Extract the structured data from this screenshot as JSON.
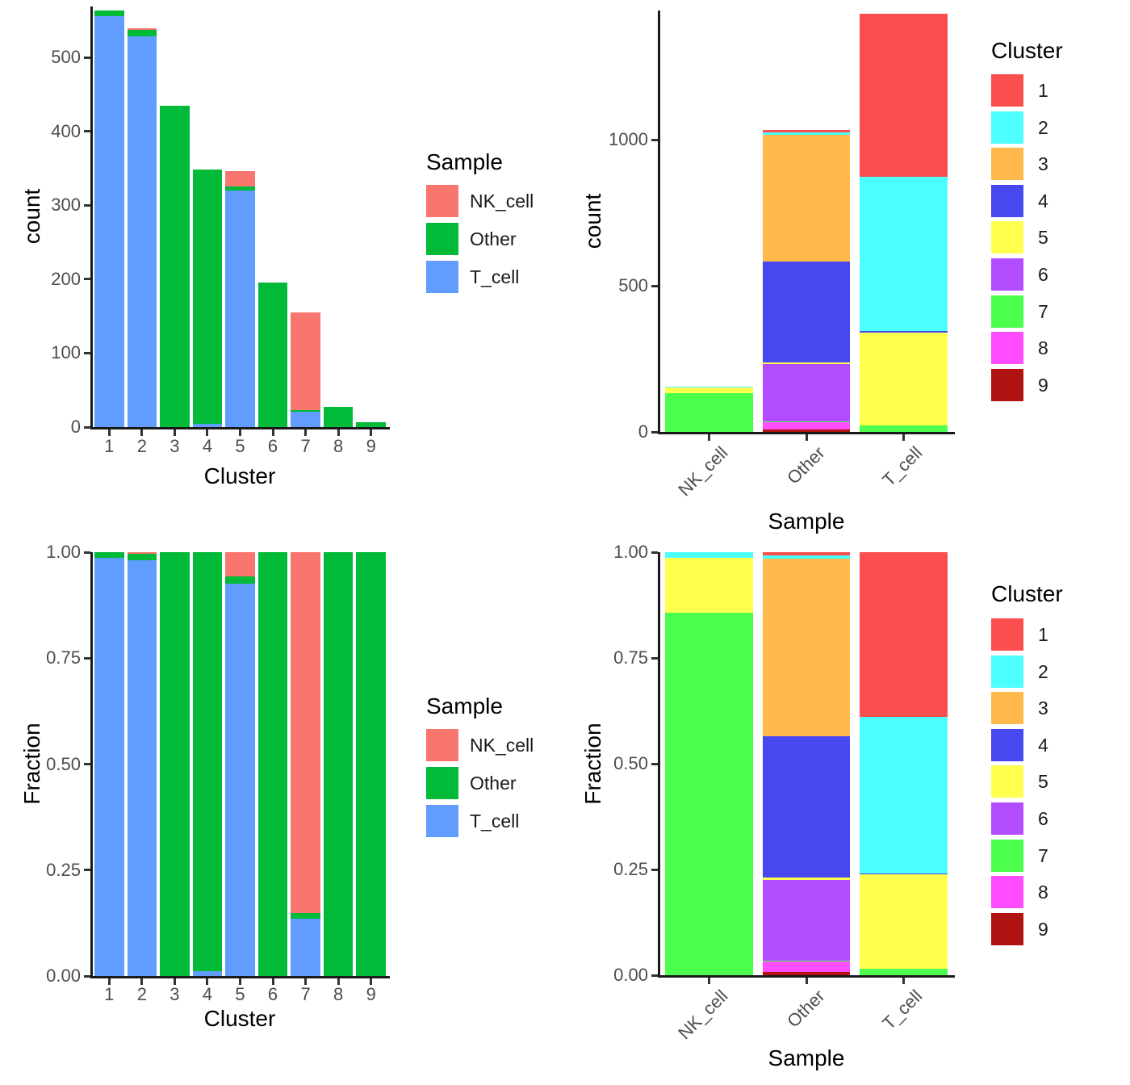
{
  "figure": {
    "background": "#ffffff",
    "description_colors": {
      "sample_NK_cell": "#F8766D",
      "sample_Other": "#00BA38",
      "sample_T_cell": "#619CFF",
      "cluster_1": "#FB4E4E",
      "cluster_2": "#4DFFFF",
      "cluster_3": "#FFB94D",
      "cluster_4": "#4848F0",
      "cluster_5": "#FFFF4D",
      "cluster_6": "#B24DFF",
      "cluster_7": "#4DFF4D",
      "cluster_8": "#FF4DFF",
      "cluster_9": "#B01212"
    }
  },
  "chart_data": [
    {
      "id": "count-by-cluster",
      "type": "bar",
      "stacked": true,
      "normalized": false,
      "xlabel": "Cluster",
      "ylabel": "count",
      "categories": [
        "1",
        "2",
        "3",
        "4",
        "5",
        "6",
        "7",
        "8",
        "9"
      ],
      "series": [
        {
          "name": "T_cell",
          "color": "#619CFF",
          "values": [
            556,
            529,
            0,
            4,
            320,
            0,
            21,
            0,
            0
          ]
        },
        {
          "name": "Other",
          "color": "#00BA38",
          "values": [
            7,
            8,
            435,
            344,
            6,
            196,
            2,
            27,
            7
          ]
        },
        {
          "name": "NK_cell",
          "color": "#F8766D",
          "values": [
            0,
            2,
            0,
            0,
            20,
            0,
            132,
            0,
            0
          ]
        }
      ],
      "yticks": [
        0,
        100,
        200,
        300,
        400,
        500
      ],
      "ytick_labels": [
        "0",
        "100",
        "200",
        "300",
        "400",
        "500"
      ],
      "ylim": [
        0,
        569
      ],
      "legend": {
        "title": "Sample",
        "entries": [
          {
            "label": "NK_cell",
            "color": "#F8766D"
          },
          {
            "label": "Other",
            "color": "#00BA38"
          },
          {
            "label": "T_cell",
            "color": "#619CFF"
          }
        ]
      }
    },
    {
      "id": "count-by-sample",
      "type": "bar",
      "stacked": true,
      "normalized": false,
      "xlabel": "Sample",
      "ylabel": "count",
      "categories": [
        "NK_cell",
        "Other",
        "T_cell"
      ],
      "series": [
        {
          "name": "9",
          "color": "#B01212",
          "values": [
            0,
            7,
            0
          ]
        },
        {
          "name": "8",
          "color": "#FF4DFF",
          "values": [
            0,
            27,
            0
          ]
        },
        {
          "name": "7",
          "color": "#4DFF4D",
          "values": [
            132,
            2,
            21
          ]
        },
        {
          "name": "6",
          "color": "#B24DFF",
          "values": [
            0,
            196,
            0
          ]
        },
        {
          "name": "5",
          "color": "#FFFF4D",
          "values": [
            20,
            6,
            320
          ]
        },
        {
          "name": "4",
          "color": "#4848F0",
          "values": [
            0,
            344,
            4
          ]
        },
        {
          "name": "3",
          "color": "#FFB94D",
          "values": [
            0,
            435,
            0
          ]
        },
        {
          "name": "2",
          "color": "#4DFFFF",
          "values": [
            2,
            8,
            529
          ]
        },
        {
          "name": "1",
          "color": "#FB4E4E",
          "values": [
            0,
            7,
            556
          ]
        }
      ],
      "yticks": [
        0,
        500,
        1000
      ],
      "ytick_labels": [
        "0",
        "500",
        "1000"
      ],
      "ylim": [
        0,
        1442
      ],
      "legend": {
        "title": "Cluster",
        "entries": [
          {
            "label": "1",
            "color": "#FB4E4E"
          },
          {
            "label": "2",
            "color": "#4DFFFF"
          },
          {
            "label": "3",
            "color": "#FFB94D"
          },
          {
            "label": "4",
            "color": "#4848F0"
          },
          {
            "label": "5",
            "color": "#FFFF4D"
          },
          {
            "label": "6",
            "color": "#B24DFF"
          },
          {
            "label": "7",
            "color": "#4DFF4D"
          },
          {
            "label": "8",
            "color": "#FF4DFF"
          },
          {
            "label": "9",
            "color": "#B01212"
          }
        ]
      }
    },
    {
      "id": "fraction-by-cluster",
      "type": "bar",
      "stacked": true,
      "normalized": true,
      "xlabel": "Cluster",
      "ylabel": "Fraction",
      "categories": [
        "1",
        "2",
        "3",
        "4",
        "5",
        "6",
        "7",
        "8",
        "9"
      ],
      "series": [
        {
          "name": "T_cell",
          "color": "#619CFF",
          "values": [
            556,
            529,
            0,
            4,
            320,
            0,
            21,
            0,
            0
          ]
        },
        {
          "name": "Other",
          "color": "#00BA38",
          "values": [
            7,
            8,
            435,
            344,
            6,
            196,
            2,
            27,
            7
          ]
        },
        {
          "name": "NK_cell",
          "color": "#F8766D",
          "values": [
            0,
            2,
            0,
            0,
            20,
            0,
            132,
            0,
            0
          ]
        }
      ],
      "yticks": [
        0,
        0.25,
        0.5,
        0.75,
        1
      ],
      "ytick_labels": [
        "0.00",
        "0.25",
        "0.50",
        "0.75",
        "1.00"
      ],
      "ylim": [
        0,
        1
      ],
      "legend": {
        "title": "Sample",
        "entries": [
          {
            "label": "NK_cell",
            "color": "#F8766D"
          },
          {
            "label": "Other",
            "color": "#00BA38"
          },
          {
            "label": "T_cell",
            "color": "#619CFF"
          }
        ]
      }
    },
    {
      "id": "fraction-by-sample",
      "type": "bar",
      "stacked": true,
      "normalized": true,
      "xlabel": "Sample",
      "ylabel": "Fraction",
      "categories": [
        "NK_cell",
        "Other",
        "T_cell"
      ],
      "series": [
        {
          "name": "9",
          "color": "#B01212",
          "values": [
            0,
            7,
            0
          ]
        },
        {
          "name": "8",
          "color": "#FF4DFF",
          "values": [
            0,
            27,
            0
          ]
        },
        {
          "name": "7",
          "color": "#4DFF4D",
          "values": [
            132,
            2,
            21
          ]
        },
        {
          "name": "6",
          "color": "#B24DFF",
          "values": [
            0,
            196,
            0
          ]
        },
        {
          "name": "5",
          "color": "#FFFF4D",
          "values": [
            20,
            6,
            320
          ]
        },
        {
          "name": "4",
          "color": "#4848F0",
          "values": [
            0,
            344,
            4
          ]
        },
        {
          "name": "3",
          "color": "#FFB94D",
          "values": [
            0,
            435,
            0
          ]
        },
        {
          "name": "2",
          "color": "#4DFFFF",
          "values": [
            2,
            8,
            529
          ]
        },
        {
          "name": "1",
          "color": "#FB4E4E",
          "values": [
            0,
            7,
            556
          ]
        }
      ],
      "yticks": [
        0,
        0.25,
        0.5,
        0.75,
        1
      ],
      "ytick_labels": [
        "0.00",
        "0.25",
        "0.50",
        "0.75",
        "1.00"
      ],
      "ylim": [
        0,
        1
      ],
      "legend": {
        "title": "Cluster",
        "entries": [
          {
            "label": "1",
            "color": "#FB4E4E"
          },
          {
            "label": "2",
            "color": "#4DFFFF"
          },
          {
            "label": "3",
            "color": "#FFB94D"
          },
          {
            "label": "4",
            "color": "#4848F0"
          },
          {
            "label": "5",
            "color": "#FFFF4D"
          },
          {
            "label": "6",
            "color": "#B24DFF"
          },
          {
            "label": "7",
            "color": "#4DFF4D"
          },
          {
            "label": "8",
            "color": "#FF4DFF"
          },
          {
            "label": "9",
            "color": "#B01212"
          }
        ]
      }
    }
  ]
}
